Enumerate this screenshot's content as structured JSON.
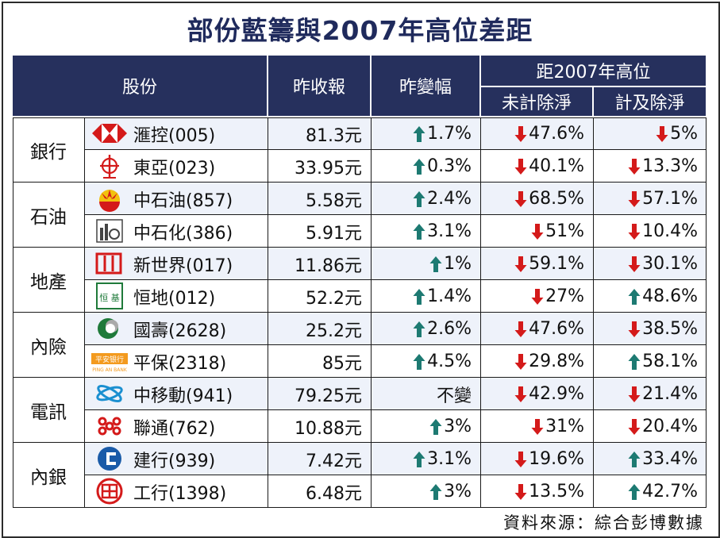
{
  "title": "部份藍籌與2007年高位差距",
  "source": "資料來源：綜合彭博數據",
  "colors": {
    "header": "#26305d",
    "up": "#1d7a72",
    "down": "#d41a1a",
    "stripe": "#eef2fa"
  },
  "chart_data": {
    "type": "table",
    "headers": {
      "stock": "股份",
      "close": "昨收報",
      "change": "昨變幅",
      "from_high": "距2007年高位",
      "unadjusted": "未計除淨",
      "adjusted": "計及除淨"
    },
    "groups": [
      {
        "name": "銀行",
        "rows": [
          {
            "stock": "滙控(005)",
            "logo": "hsbc-logo",
            "close": "81.3元",
            "change": "1.7%",
            "change_dir": "up",
            "unadj": "47.6%",
            "unadj_dir": "down",
            "adj": "5%",
            "adj_dir": "down"
          },
          {
            "stock": "東亞(023)",
            "logo": "bea-logo",
            "close": "33.95元",
            "change": "0.3%",
            "change_dir": "up",
            "unadj": "40.1%",
            "unadj_dir": "down",
            "adj": "13.3%",
            "adj_dir": "down"
          }
        ]
      },
      {
        "name": "石油",
        "rows": [
          {
            "stock": "中石油(857)",
            "logo": "petrochina-logo",
            "close": "5.58元",
            "change": "2.4%",
            "change_dir": "up",
            "unadj": "68.5%",
            "unadj_dir": "down",
            "adj": "57.1%",
            "adj_dir": "down"
          },
          {
            "stock": "中石化(386)",
            "logo": "sinopec-logo",
            "close": "5.91元",
            "change": "3.1%",
            "change_dir": "up",
            "unadj": "51%",
            "unadj_dir": "down",
            "adj": "10.4%",
            "adj_dir": "down"
          }
        ]
      },
      {
        "name": "地產",
        "rows": [
          {
            "stock": "新世界(017)",
            "logo": "newworld-logo",
            "close": "11.86元",
            "change": "1%",
            "change_dir": "up",
            "unadj": "59.1%",
            "unadj_dir": "down",
            "adj": "30.1%",
            "adj_dir": "down"
          },
          {
            "stock": "恒地(012)",
            "logo": "hld-logo",
            "close": "52.2元",
            "change": "1.4%",
            "change_dir": "up",
            "unadj": "27%",
            "unadj_dir": "down",
            "adj": "48.6%",
            "adj_dir": "up"
          }
        ]
      },
      {
        "name": "內險",
        "rows": [
          {
            "stock": "國壽(2628)",
            "logo": "chinalife-logo",
            "close": "25.2元",
            "change": "2.6%",
            "change_dir": "up",
            "unadj": "47.6%",
            "unadj_dir": "down",
            "adj": "38.5%",
            "adj_dir": "down"
          },
          {
            "stock": "平保(2318)",
            "logo": "pingan-logo",
            "close": "85元",
            "change": "4.5%",
            "change_dir": "up",
            "unadj": "29.8%",
            "unadj_dir": "down",
            "adj": "58.1%",
            "adj_dir": "up"
          }
        ]
      },
      {
        "name": "電訊",
        "rows": [
          {
            "stock": "中移動(941)",
            "logo": "chinamobile-logo",
            "close": "79.25元",
            "change": "不變",
            "change_dir": "none",
            "unadj": "42.9%",
            "unadj_dir": "down",
            "adj": "21.4%",
            "adj_dir": "down"
          },
          {
            "stock": "聯通(762)",
            "logo": "unicom-logo",
            "close": "10.88元",
            "change": "3%",
            "change_dir": "up",
            "unadj": "31%",
            "unadj_dir": "down",
            "adj": "20.4%",
            "adj_dir": "down"
          }
        ]
      },
      {
        "name": "內銀",
        "rows": [
          {
            "stock": "建行(939)",
            "logo": "ccb-logo",
            "close": "7.42元",
            "change": "3.1%",
            "change_dir": "up",
            "unadj": "19.6%",
            "unadj_dir": "down",
            "adj": "33.4%",
            "adj_dir": "up"
          },
          {
            "stock": "工行(1398)",
            "logo": "icbc-logo",
            "close": "6.48元",
            "change": "3%",
            "change_dir": "up",
            "unadj": "13.5%",
            "unadj_dir": "down",
            "adj": "42.7%",
            "adj_dir": "up"
          }
        ]
      }
    ]
  }
}
